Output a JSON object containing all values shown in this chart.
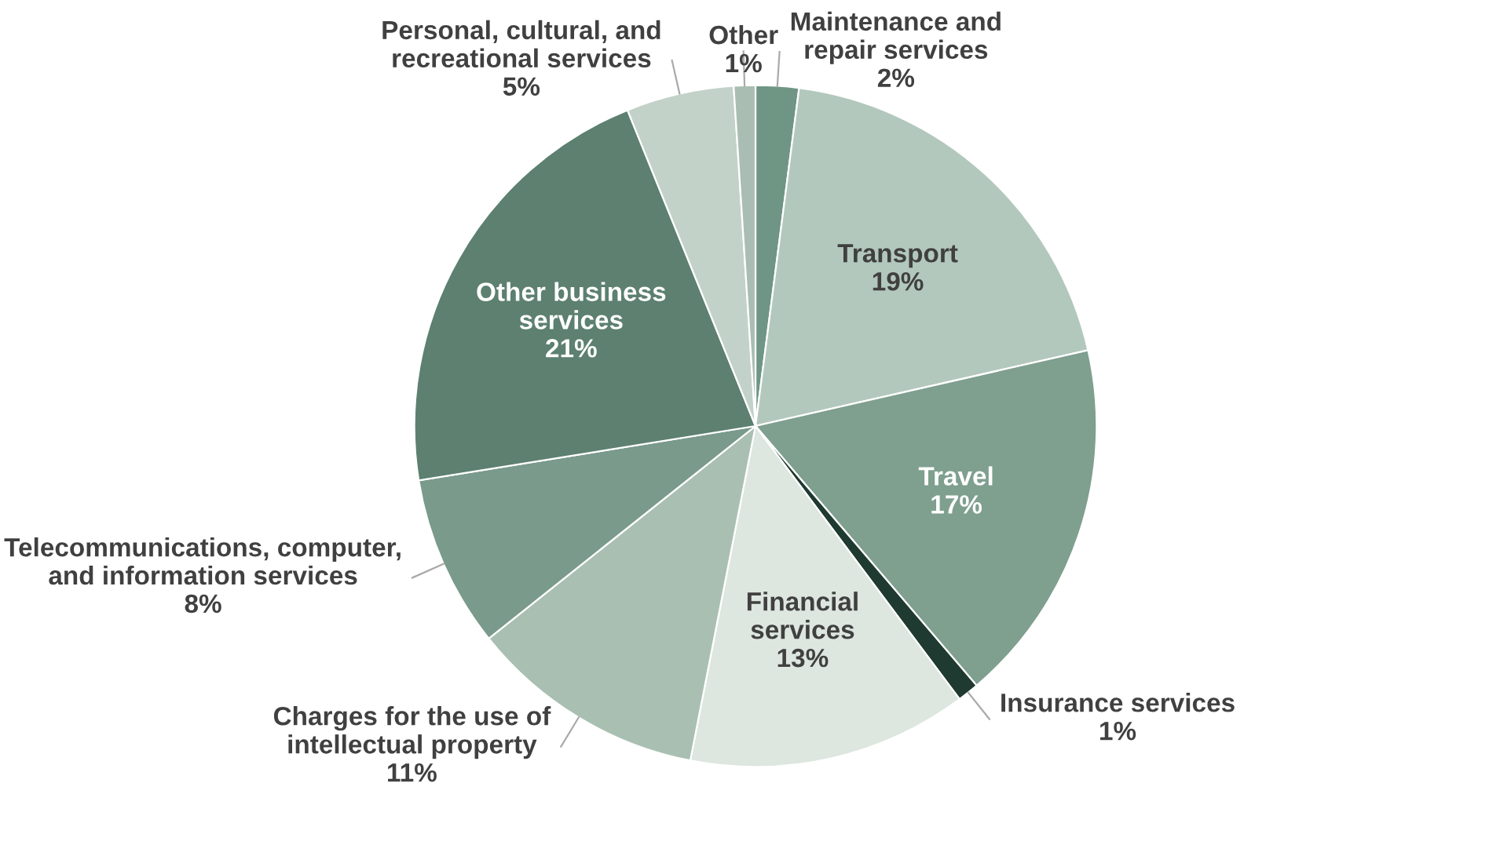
{
  "chart_data": {
    "type": "pie",
    "categories": [
      "Maintenance and\nrepair services",
      "Transport",
      "Travel",
      "Insurance services",
      "Financial\nservices",
      "Charges for the use of\nintellectual property",
      "Telecommunications, computer,\nand information services",
      "Other business\nservices",
      "Personal, cultural, and\nrecreational services",
      "Other"
    ],
    "values": [
      2,
      19,
      17,
      1,
      13,
      11,
      8,
      21,
      5,
      1
    ],
    "value_labels": [
      "2%",
      "19%",
      "17%",
      "1%",
      "13%",
      "11%",
      "8%",
      "21%",
      "5%",
      "1%"
    ],
    "colors": [
      "#6f9585",
      "#b3c8bc",
      "#7f9f8f",
      "#1f3a30",
      "#dde6df",
      "#a9bfb2",
      "#7a9a8b",
      "#5d8070",
      "#c3d2c9",
      "#a9bdb2"
    ],
    "legend": false
  }
}
